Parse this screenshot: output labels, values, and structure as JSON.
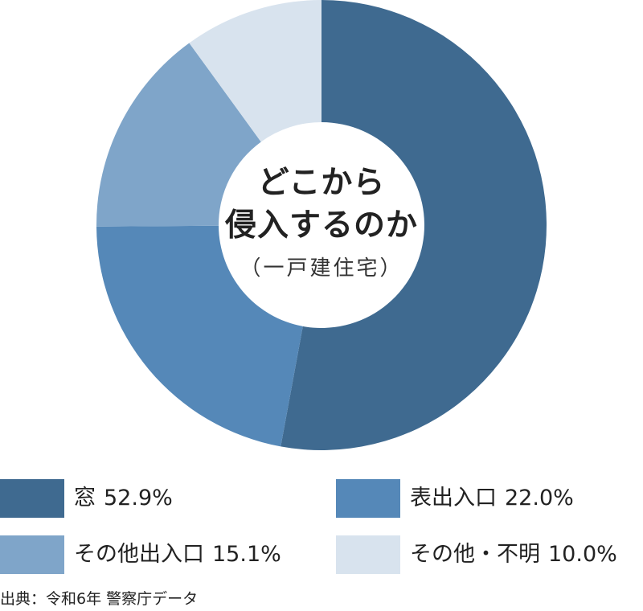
{
  "chart_data": {
    "type": "pie",
    "subtype": "donut",
    "center_title_line1": "どこから",
    "center_title_line2": "侵入するのか",
    "center_subtitle": "（一戸建住宅）",
    "categories": [
      "窓",
      "表出入口",
      "その他出入口",
      "その他・不明"
    ],
    "values": [
      52.9,
      22.0,
      15.1,
      10.0
    ],
    "value_labels": [
      "52.9%",
      "22.0%",
      "15.1%",
      "10.0%"
    ],
    "colors": [
      "#3f6a90",
      "#5588b8",
      "#7fa5c9",
      "#d8e3ee"
    ],
    "legend_placement": "bottom",
    "start_angle": "top (12 o'clock), clockwise"
  },
  "source": "出典：令和6年 警察庁データ"
}
